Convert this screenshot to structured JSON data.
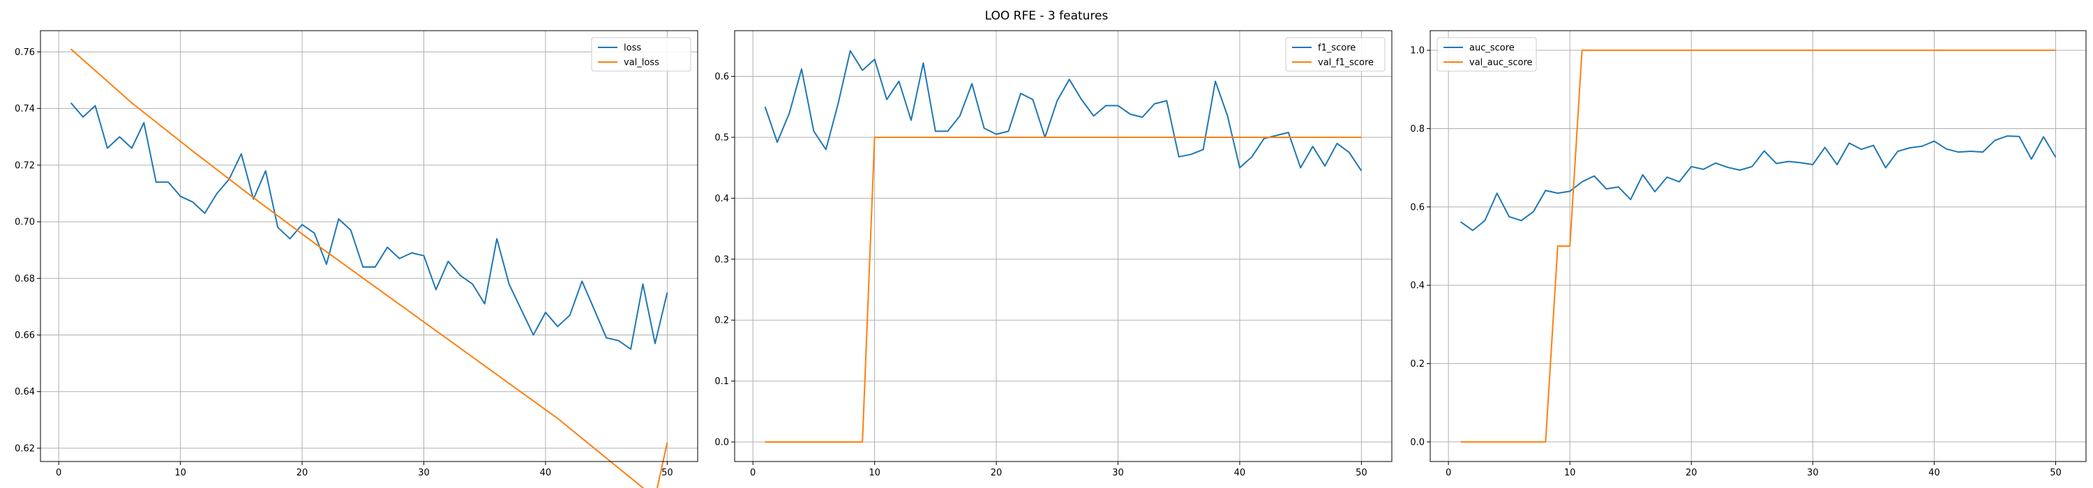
{
  "figure": {
    "title": "LOO RFE - 3 features"
  },
  "colors": {
    "series1": "#1f77b4",
    "series2": "#ff7f0e",
    "grid": "#b0b0b0"
  },
  "chart_data": [
    {
      "type": "line",
      "grid": true,
      "legend_position": "top-right",
      "xlim": [
        -1.5,
        52.5
      ],
      "ylim": [
        0.6153,
        0.7675
      ],
      "xticks": [
        0,
        10,
        20,
        30,
        40,
        50
      ],
      "yticks": [
        0.62,
        0.64,
        0.66,
        0.68,
        0.7,
        0.72,
        0.74,
        0.76
      ],
      "ytick_labels": [
        "0.62",
        "0.64",
        "0.66",
        "0.68",
        "0.70",
        "0.72",
        "0.74",
        "0.76"
      ],
      "x": [
        1,
        2,
        3,
        4,
        5,
        6,
        7,
        8,
        9,
        10,
        11,
        12,
        13,
        14,
        15,
        16,
        17,
        18,
        19,
        20,
        21,
        22,
        23,
        24,
        25,
        26,
        27,
        28,
        29,
        30,
        31,
        32,
        33,
        34,
        35,
        36,
        37,
        38,
        39,
        40,
        41,
        42,
        43,
        44,
        45,
        46,
        47,
        48,
        49,
        50
      ],
      "series": [
        {
          "name": "loss",
          "values": [
            0.742,
            0.737,
            0.741,
            0.726,
            0.73,
            0.726,
            0.735,
            0.714,
            0.714,
            0.709,
            0.707,
            0.703,
            0.71,
            0.715,
            0.724,
            0.708,
            0.718,
            0.698,
            0.694,
            0.699,
            0.696,
            0.685,
            0.701,
            0.697,
            0.684,
            0.684,
            0.691,
            0.687,
            0.689,
            0.688,
            0.676,
            0.686,
            0.681,
            0.678,
            0.671,
            0.694,
            0.678,
            0.669,
            0.66,
            0.668,
            0.663,
            0.667,
            0.679,
            0.669,
            0.659,
            0.658,
            0.655,
            0.678,
            0.657,
            0.675
          ]
        },
        {
          "name": "val_loss",
          "values": [
            0.761,
            0.7572,
            0.7534,
            0.7496,
            0.7458,
            0.742,
            0.7386,
            0.7352,
            0.7318,
            0.7284,
            0.725,
            0.7217,
            0.7184,
            0.7151,
            0.7118,
            0.7085,
            0.7053,
            0.7021,
            0.6989,
            0.6957,
            0.6925,
            0.6894,
            0.6863,
            0.6832,
            0.6801,
            0.677,
            0.6739,
            0.6708,
            0.6677,
            0.6646,
            0.6615,
            0.6584,
            0.6553,
            0.6522,
            0.6491,
            0.646,
            0.6429,
            0.6398,
            0.6367,
            0.6336,
            0.6305,
            0.627,
            0.6235,
            0.62,
            0.6165,
            0.613,
            0.6095,
            0.606,
            0.6025,
            0.622
          ]
        }
      ]
    },
    {
      "type": "line",
      "grid": true,
      "legend_position": "top-right",
      "xlim": [
        -1.5,
        52.5
      ],
      "ylim": [
        -0.032,
        0.675
      ],
      "xticks": [
        0,
        10,
        20,
        30,
        40,
        50
      ],
      "yticks": [
        0.0,
        0.1,
        0.2,
        0.3,
        0.4,
        0.5,
        0.6
      ],
      "ytick_labels": [
        "0.0",
        "0.1",
        "0.2",
        "0.3",
        "0.4",
        "0.5",
        "0.6"
      ],
      "x": [
        1,
        2,
        3,
        4,
        5,
        6,
        7,
        8,
        9,
        10,
        11,
        12,
        13,
        14,
        15,
        16,
        17,
        18,
        19,
        20,
        21,
        22,
        23,
        24,
        25,
        26,
        27,
        28,
        29,
        30,
        31,
        32,
        33,
        34,
        35,
        36,
        37,
        38,
        39,
        40,
        41,
        42,
        43,
        44,
        45,
        46,
        47,
        48,
        49,
        50
      ],
      "series": [
        {
          "name": "f1_score",
          "values": [
            0.55,
            0.492,
            0.54,
            0.612,
            0.51,
            0.48,
            0.555,
            0.642,
            0.61,
            0.628,
            0.562,
            0.592,
            0.528,
            0.622,
            0.51,
            0.51,
            0.535,
            0.588,
            0.515,
            0.505,
            0.51,
            0.572,
            0.562,
            0.5,
            0.56,
            0.595,
            0.562,
            0.535,
            0.552,
            0.552,
            0.538,
            0.533,
            0.555,
            0.56,
            0.468,
            0.472,
            0.48,
            0.592,
            0.535,
            0.45,
            0.468,
            0.498,
            0.503,
            0.508,
            0.45,
            0.485,
            0.453,
            0.49,
            0.475,
            0.445
          ]
        },
        {
          "name": "val_f1_score",
          "values": [
            0,
            0,
            0,
            0,
            0,
            0,
            0,
            0,
            0,
            0.5,
            0.5,
            0.5,
            0.5,
            0.5,
            0.5,
            0.5,
            0.5,
            0.5,
            0.5,
            0.5,
            0.5,
            0.5,
            0.5,
            0.5,
            0.5,
            0.5,
            0.5,
            0.5,
            0.5,
            0.5,
            0.5,
            0.5,
            0.5,
            0.5,
            0.5,
            0.5,
            0.5,
            0.5,
            0.5,
            0.5,
            0.5,
            0.5,
            0.5,
            0.5,
            0.5,
            0.5,
            0.5,
            0.5,
            0.5,
            0.5
          ]
        }
      ]
    },
    {
      "type": "line",
      "grid": true,
      "legend_position": "top-left",
      "xlim": [
        -1.5,
        52.5
      ],
      "ylim": [
        -0.05,
        1.05
      ],
      "xticks": [
        0,
        10,
        20,
        30,
        40,
        50
      ],
      "yticks": [
        0.0,
        0.2,
        0.4,
        0.6,
        0.8,
        1.0
      ],
      "ytick_labels": [
        "0.0",
        "0.2",
        "0.4",
        "0.6",
        "0.8",
        "1.0"
      ],
      "x": [
        1,
        2,
        3,
        4,
        5,
        6,
        7,
        8,
        9,
        10,
        11,
        12,
        13,
        14,
        15,
        16,
        17,
        18,
        19,
        20,
        21,
        22,
        23,
        24,
        25,
        26,
        27,
        28,
        29,
        30,
        31,
        32,
        33,
        34,
        35,
        36,
        37,
        38,
        39,
        40,
        41,
        42,
        43,
        44,
        45,
        46,
        47,
        48,
        49,
        50
      ],
      "series": [
        {
          "name": "auc_score",
          "values": [
            0.562,
            0.54,
            0.565,
            0.635,
            0.575,
            0.565,
            0.588,
            0.642,
            0.635,
            0.64,
            0.664,
            0.679,
            0.646,
            0.651,
            0.619,
            0.682,
            0.639,
            0.676,
            0.664,
            0.703,
            0.696,
            0.712,
            0.701,
            0.694,
            0.703,
            0.743,
            0.711,
            0.716,
            0.713,
            0.708,
            0.752,
            0.708,
            0.763,
            0.747,
            0.757,
            0.7,
            0.742,
            0.751,
            0.755,
            0.768,
            0.748,
            0.74,
            0.742,
            0.74,
            0.77,
            0.781,
            0.78,
            0.722,
            0.779,
            0.727
          ]
        },
        {
          "name": "val_auc_score",
          "values": [
            0,
            0,
            0,
            0,
            0,
            0,
            0,
            0,
            0.5,
            0.5,
            1,
            1,
            1,
            1,
            1,
            1,
            1,
            1,
            1,
            1,
            1,
            1,
            1,
            1,
            1,
            1,
            1,
            1,
            1,
            1,
            1,
            1,
            1,
            1,
            1,
            1,
            1,
            1,
            1,
            1,
            1,
            1,
            1,
            1,
            1,
            1,
            1,
            1,
            1,
            1
          ]
        }
      ]
    }
  ]
}
